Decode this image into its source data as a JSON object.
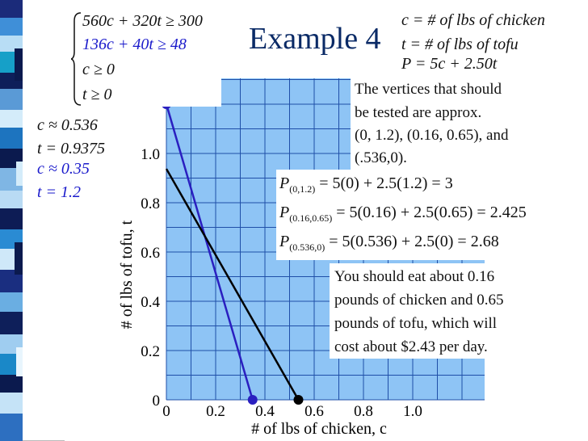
{
  "slide": {
    "title": "Example 4",
    "system": {
      "ineq1": "560c + 320t ≥ 300",
      "ineq2": "136c + 40t ≥ 48",
      "ineq3": "c ≥ 0",
      "ineq4": "t ≥ 0"
    },
    "definitions": {
      "c_def": "c =  # of lbs of chicken",
      "t_def": "t =  # of lbs of tofu",
      "p_def": "P = 5c + 2.50t"
    },
    "intercepts_black": {
      "c": "c ≈ 0.536",
      "t": "t = 0.9375"
    },
    "intercepts_blue": {
      "c": "c ≈ 0.35",
      "t": "t = 1.2"
    },
    "vertices_note": [
      "The vertices that should",
      "be tested are approx.",
      "(0, 1.2), (0.16, 0.65), and",
      "(.536,0)."
    ],
    "evaluations": [
      {
        "sub": "(0,1.2)",
        "expr": "= 5(0) + 2.5(1.2) = 3"
      },
      {
        "sub": "(0.16,0.65)",
        "expr": "= 5(0.16) + 2.5(0.65) = 2.425"
      },
      {
        "sub": "(0.536,0)",
        "expr": "= 5(0.536) + 2.5(0) = 2.68"
      }
    ],
    "conclusion": [
      "You should eat about 0.16",
      "pounds of chicken and 0.65",
      "pounds of tofu, which will",
      "cost about $2.43 per day."
    ]
  },
  "colors": {
    "feasible": "#8ec4f5",
    "grid": "#1f4fa8",
    "blue_line": "#2a1fc0",
    "black_line": "#000000",
    "title": "#0a2a66"
  },
  "chart_data": {
    "type": "line",
    "xlabel": "# of lbs of chicken, c",
    "ylabel": "# of lbs of tofu, t",
    "x_ticks": [
      "0",
      "0.2",
      "0.4",
      "0.6",
      "0.8",
      "1.0"
    ],
    "y_ticks": [
      "0",
      "0.2",
      "0.4",
      "0.6",
      "0.8",
      "1.0"
    ],
    "xlim": [
      0,
      1.3
    ],
    "ylim": [
      0,
      1.3
    ],
    "series": [
      {
        "color": "#2a1fc0",
        "points": [
          [
            0,
            1.2
          ],
          [
            0.35,
            0
          ]
        ]
      },
      {
        "color": "#000000",
        "points": [
          [
            0,
            0.9375
          ],
          [
            0.536,
            0
          ]
        ]
      }
    ],
    "vertices": [
      {
        "x": 0,
        "y": 1.2,
        "color": "#2a1fc0"
      },
      {
        "x": 0.35,
        "y": 0,
        "color": "#2a1fc0"
      },
      {
        "x": 0.536,
        "y": 0,
        "color": "#000000"
      }
    ]
  }
}
